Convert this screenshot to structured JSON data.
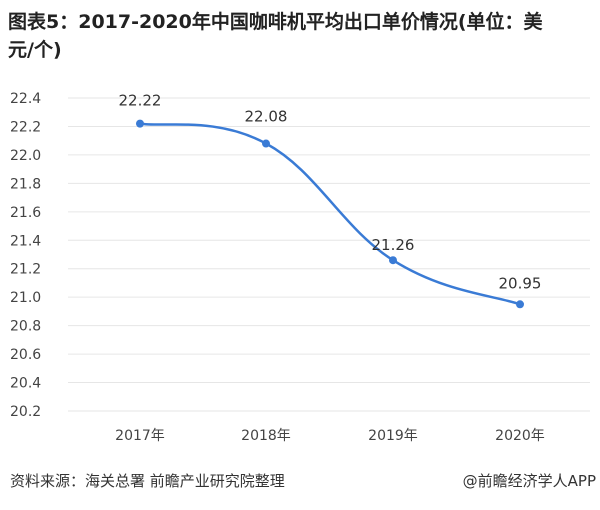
{
  "title": "图表5：2017-2020年中国咖啡机平均出口单价情况(单位：美元/个)",
  "source": "资料来源：海关总署 前瞻产业研究院整理",
  "credit": "@前瞻经济学人APP",
  "watermark": "前瞻产业研究院",
  "colors": {
    "line": "#3a7bd5",
    "grid": "#e6e6e6",
    "label": "#444444"
  },
  "chart_data": {
    "type": "line",
    "title": "图表5：2017-2020年中国咖啡机平均出口单价情况(单位：美元/个)",
    "categories": [
      "2017年",
      "2018年",
      "2019年",
      "2020年"
    ],
    "values": [
      22.22,
      22.08,
      21.26,
      20.95
    ],
    "data_labels": [
      "22.22",
      "22.08",
      "21.26",
      "20.95"
    ],
    "ylim": [
      20.2,
      22.4
    ],
    "yticks": [
      "22.4",
      "22.2",
      "22.0",
      "21.8",
      "21.6",
      "21.4",
      "21.2",
      "21.0",
      "20.8",
      "20.6",
      "20.4",
      "20.2"
    ],
    "grid": true,
    "smooth": true
  }
}
